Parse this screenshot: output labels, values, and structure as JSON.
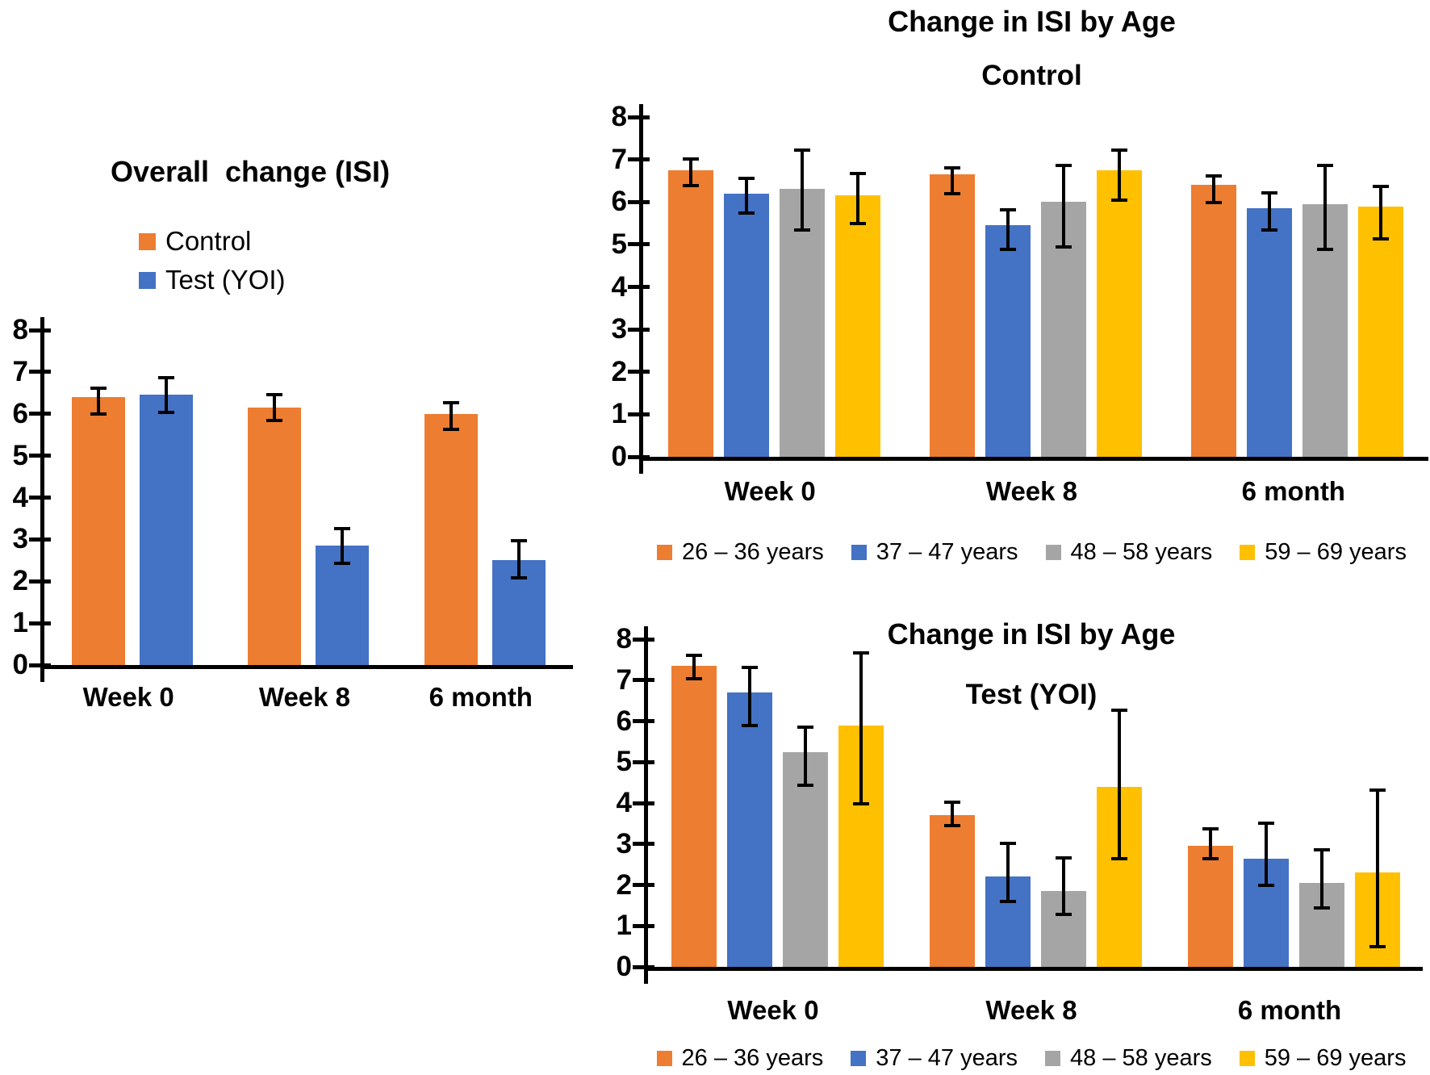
{
  "figure": {
    "background": "#ffffff",
    "text_color": "#000000"
  },
  "palette": {
    "orange": "#ED7D31",
    "blue": "#4472C4",
    "gray": "#A5A5A5",
    "yellow": "#FFC000",
    "axis": "#000000",
    "error_bar": "#000000"
  },
  "chart_data": [
    {
      "id": "overall-change-isi",
      "type": "bar",
      "title": "Overall  change (ISI)",
      "subtitle": "",
      "categories": [
        "Week 0",
        "Week 8",
        "6 month"
      ],
      "xlabel": "",
      "ylabel": "",
      "ylim": [
        0,
        8
      ],
      "yticks": [
        0,
        1,
        2,
        3,
        4,
        5,
        6,
        7,
        8
      ],
      "grid": false,
      "legend_position": "inside-top-left",
      "series": [
        {
          "name": "Control",
          "color_key": "orange",
          "values": [
            6.4,
            6.15,
            6.0
          ],
          "error_low": [
            5.95,
            5.8,
            5.6
          ],
          "error_high": [
            6.65,
            6.5,
            6.3
          ]
        },
        {
          "name": "Test (YOI)",
          "color_key": "blue",
          "values": [
            6.45,
            2.85,
            2.5
          ],
          "error_low": [
            6.0,
            2.4,
            2.05
          ],
          "error_high": [
            6.9,
            3.3,
            3.0
          ]
        }
      ]
    },
    {
      "id": "change-isi-by-age-control",
      "type": "bar",
      "title": "Change in ISI by Age",
      "subtitle": "Control",
      "categories": [
        "Week 0",
        "Week 8",
        "6 month"
      ],
      "xlabel": "",
      "ylabel": "",
      "ylim": [
        0,
        8
      ],
      "yticks": [
        0,
        1,
        2,
        3,
        4,
        5,
        6,
        7,
        8
      ],
      "grid": false,
      "legend_position": "bottom",
      "series": [
        {
          "name": "26 – 36 years",
          "color_key": "orange",
          "values": [
            6.75,
            6.65,
            6.4
          ],
          "error_low": [
            6.35,
            6.15,
            5.95
          ],
          "error_high": [
            7.05,
            6.85,
            6.65
          ]
        },
        {
          "name": "37 – 47 years",
          "color_key": "blue",
          "values": [
            6.2,
            5.45,
            5.85
          ],
          "error_low": [
            5.7,
            4.85,
            5.3
          ],
          "error_high": [
            6.6,
            5.85,
            6.25
          ]
        },
        {
          "name": "48 – 58 years",
          "color_key": "gray",
          "values": [
            6.3,
            6.0,
            5.95
          ],
          "error_low": [
            5.3,
            4.9,
            4.85
          ],
          "error_high": [
            7.25,
            6.9,
            6.9
          ]
        },
        {
          "name": "59 – 69 years",
          "color_key": "yellow",
          "values": [
            6.15,
            6.75,
            5.9
          ],
          "error_low": [
            5.45,
            6.0,
            5.1
          ],
          "error_high": [
            6.7,
            7.25,
            6.4
          ]
        }
      ]
    },
    {
      "id": "change-isi-by-age-test-yoi",
      "type": "bar",
      "title": "Change in ISI by Age",
      "subtitle": "Test (YOI)",
      "categories": [
        "Week 0",
        "Week 8",
        "6 month"
      ],
      "xlabel": "",
      "ylabel": "",
      "ylim": [
        0,
        8
      ],
      "yticks": [
        0,
        1,
        2,
        3,
        4,
        5,
        6,
        7,
        8
      ],
      "grid": false,
      "legend_position": "bottom",
      "series": [
        {
          "name": "26 – 36 years",
          "color_key": "orange",
          "values": [
            7.35,
            3.7,
            2.95
          ],
          "error_low": [
            7.0,
            3.4,
            2.6
          ],
          "error_high": [
            7.65,
            4.05,
            3.4
          ]
        },
        {
          "name": "37 – 47 years",
          "color_key": "blue",
          "values": [
            6.7,
            2.2,
            2.65
          ],
          "error_low": [
            5.85,
            1.55,
            1.95
          ],
          "error_high": [
            7.35,
            3.05,
            3.55
          ]
        },
        {
          "name": "48 – 58 years",
          "color_key": "gray",
          "values": [
            5.25,
            1.85,
            2.05
          ],
          "error_low": [
            4.4,
            1.25,
            1.4
          ],
          "error_high": [
            5.9,
            2.7,
            2.9
          ]
        },
        {
          "name": "59 – 69 years",
          "color_key": "yellow",
          "values": [
            5.9,
            4.4,
            2.3
          ],
          "error_low": [
            3.95,
            2.6,
            0.45
          ],
          "error_high": [
            7.7,
            6.3,
            4.35
          ]
        }
      ]
    }
  ]
}
